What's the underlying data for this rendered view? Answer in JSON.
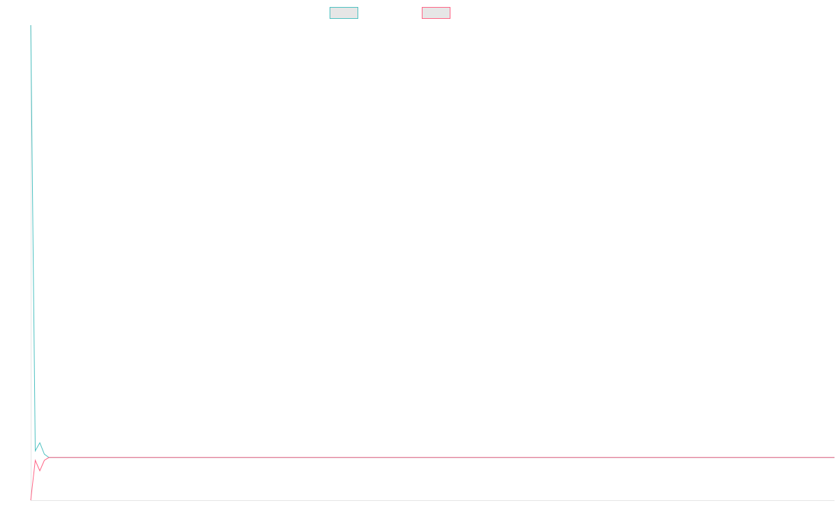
{
  "chart_data": {
    "type": "line",
    "x": [
      0,
      1,
      2,
      3,
      4,
      177
    ],
    "series": [
      {
        "color": "#4bc0c0",
        "values": [
          100,
          10.4,
          12.1,
          9.7,
          9.0,
          9.0
        ]
      },
      {
        "color": "#ff6384",
        "values": [
          0,
          8.4,
          6.2,
          8.4,
          9.0,
          9.0
        ]
      }
    ],
    "xlim": [
      0,
      177
    ],
    "ylim": [
      0,
      100
    ],
    "legend": "top"
  }
}
